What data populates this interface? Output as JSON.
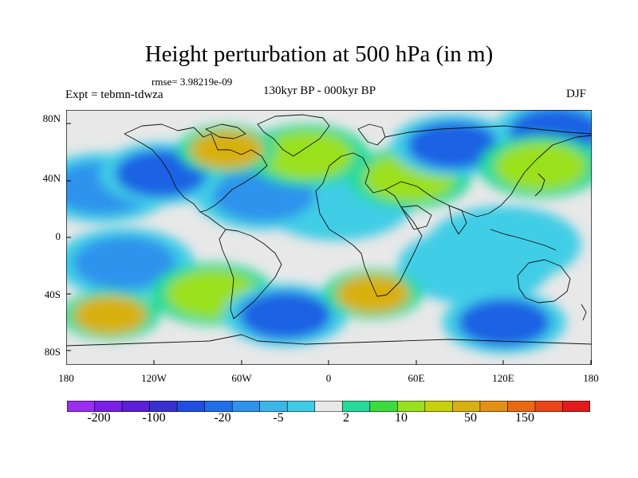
{
  "title": "Height perturbation at 500 hPa (in m)",
  "rmse_label": "rmse= 3.98219e-09",
  "experiment_label": "Expt = tebmn-tdwza",
  "period_label": "130kyr BP - 000kyr BP",
  "season_label": "DJF",
  "latitude_ticks": [
    "80N",
    "40N",
    "0",
    "40S",
    "80S"
  ],
  "longitude_ticks": [
    "180",
    "120W",
    "60W",
    "0",
    "60E",
    "120E",
    "180"
  ],
  "colorbar": {
    "colors": [
      "#9b2ff0",
      "#7a1fe6",
      "#5a1fd6",
      "#3a2fd0",
      "#1f4fe0",
      "#1e6fe8",
      "#2e93ec",
      "#3ab6ea",
      "#3fcde6",
      "#e8e8e8",
      "#25d99a",
      "#3bdc3b",
      "#9be01e",
      "#c8d00c",
      "#d8b010",
      "#e49014",
      "#ea6a14",
      "#ea4418",
      "#e31a1c"
    ],
    "labels": [
      "-200",
      "-100",
      "-20",
      "-5",
      "2",
      "10",
      "50",
      "150"
    ]
  },
  "chart_data": {
    "type": "heatmap",
    "title": "Height perturbation at 500 hPa (in m)",
    "xlabel": "",
    "ylabel": "",
    "xlim": [
      -180,
      180
    ],
    "ylim": [
      -90,
      90
    ],
    "x_ticks": [
      -180,
      -120,
      -60,
      0,
      60,
      120,
      180
    ],
    "y_ticks": [
      80,
      40,
      0,
      -40,
      -80
    ],
    "levels": [
      -200,
      -150,
      -100,
      -50,
      -20,
      -10,
      -5,
      -2,
      2,
      5,
      10,
      20,
      50,
      100,
      150,
      200
    ],
    "features": [
      {
        "lon": -115,
        "lat": 45,
        "value": -20
      },
      {
        "lon": -155,
        "lat": 35,
        "value": -10
      },
      {
        "lon": -70,
        "lat": 62,
        "value": 50
      },
      {
        "lon": -15,
        "lat": 58,
        "value": 20
      },
      {
        "lon": 55,
        "lat": 42,
        "value": 20
      },
      {
        "lon": -45,
        "lat": 30,
        "value": -10
      },
      {
        "lon": 5,
        "lat": 25,
        "value": -5
      },
      {
        "lon": 85,
        "lat": 65,
        "value": -20
      },
      {
        "lon": 155,
        "lat": 75,
        "value": -20
      },
      {
        "lon": 145,
        "lat": 50,
        "value": 20
      },
      {
        "lon": -140,
        "lat": -18,
        "value": -10
      },
      {
        "lon": -80,
        "lat": -40,
        "value": 20
      },
      {
        "lon": 30,
        "lat": -40,
        "value": 50
      },
      {
        "lon": -150,
        "lat": -55,
        "value": 50
      },
      {
        "lon": 120,
        "lat": -60,
        "value": -20
      },
      {
        "lon": -30,
        "lat": -55,
        "value": -20
      },
      {
        "lon": 100,
        "lat": -20,
        "value": -5
      },
      {
        "lon": 120,
        "lat": -5,
        "value": -5
      }
    ]
  }
}
